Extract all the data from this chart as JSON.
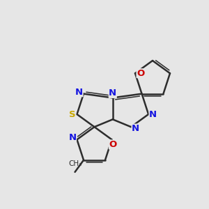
{
  "background_color": "#e6e6e6",
  "bond_color": "#2d2d2d",
  "atom_colors": {
    "N": "#1515e0",
    "O": "#cc0000",
    "S": "#c8a800",
    "C": "#2d2d2d",
    "methyl": "#2d2d2d"
  },
  "figsize": [
    3.0,
    3.0
  ],
  "dpi": 100
}
